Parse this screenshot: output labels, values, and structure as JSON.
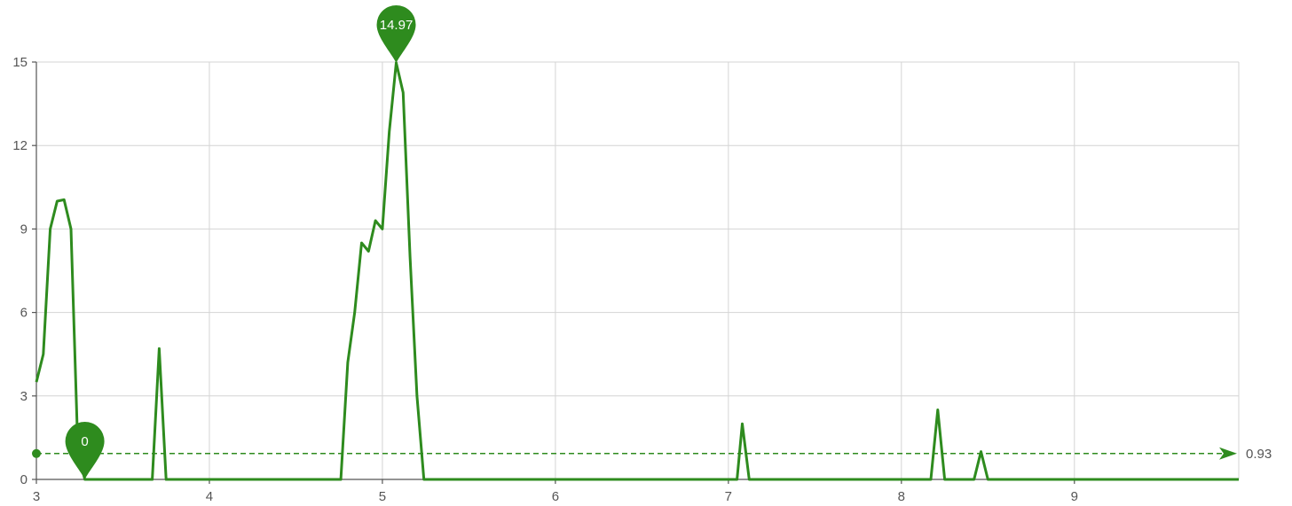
{
  "colors": {
    "series": "#2e8b1e",
    "grid": "#d4d4d4",
    "axis": "#555555"
  },
  "chart_data": {
    "type": "line",
    "xlim": [
      3,
      9.95
    ],
    "ylim": [
      0,
      15
    ],
    "x_ticks": [
      3,
      4,
      5,
      6,
      7,
      8,
      9
    ],
    "x_tick_labels": [
      "3",
      "4",
      "5",
      "6",
      "7",
      "8",
      "9"
    ],
    "y_ticks": [
      0,
      3,
      6,
      9,
      12,
      15
    ],
    "y_tick_labels": [
      "0",
      "3",
      "6",
      "9",
      "12",
      "15"
    ],
    "grid": true,
    "series": [
      {
        "x": [
          3.0,
          3.04,
          3.08,
          3.12,
          3.16,
          3.2,
          3.24,
          3.28,
          3.32,
          3.36,
          3.4,
          3.5,
          3.6,
          3.67,
          3.71,
          3.75,
          3.8,
          4.0,
          4.2,
          4.4,
          4.6,
          4.76,
          4.8,
          4.84,
          4.88,
          4.92,
          4.96,
          5.0,
          5.04,
          5.08,
          5.12,
          5.16,
          5.2,
          5.24,
          5.3,
          5.5,
          6.0,
          6.5,
          7.0,
          7.05,
          7.08,
          7.12,
          7.2,
          7.6,
          8.0,
          8.17,
          8.21,
          8.25,
          8.3,
          8.42,
          8.46,
          8.5,
          8.6,
          9.0,
          9.5,
          9.95
        ],
        "values": [
          3.5,
          4.5,
          9.0,
          10.0,
          10.05,
          9.0,
          1.0,
          0.0,
          0.0,
          0.0,
          0.0,
          0.0,
          0.0,
          0.0,
          4.7,
          0.0,
          0.0,
          0.0,
          0.0,
          0.0,
          0.0,
          0.0,
          4.2,
          6.0,
          8.5,
          8.2,
          9.3,
          9.0,
          12.5,
          14.97,
          13.9,
          8.0,
          3.0,
          0.0,
          0.0,
          0.0,
          0.0,
          0.0,
          0.0,
          0.0,
          2.0,
          0.0,
          0.0,
          0.0,
          0.0,
          0.0,
          2.5,
          0.0,
          0.0,
          0.0,
          1.0,
          0.0,
          0.0,
          0.0,
          0.0,
          0.0
        ]
      }
    ],
    "max_point": {
      "x": 5.08,
      "y": 14.97,
      "label": "14.97"
    },
    "min_point": {
      "x": 3.28,
      "y": 0,
      "label": "0"
    },
    "average": {
      "y": 0.93,
      "label": "0.93"
    }
  }
}
